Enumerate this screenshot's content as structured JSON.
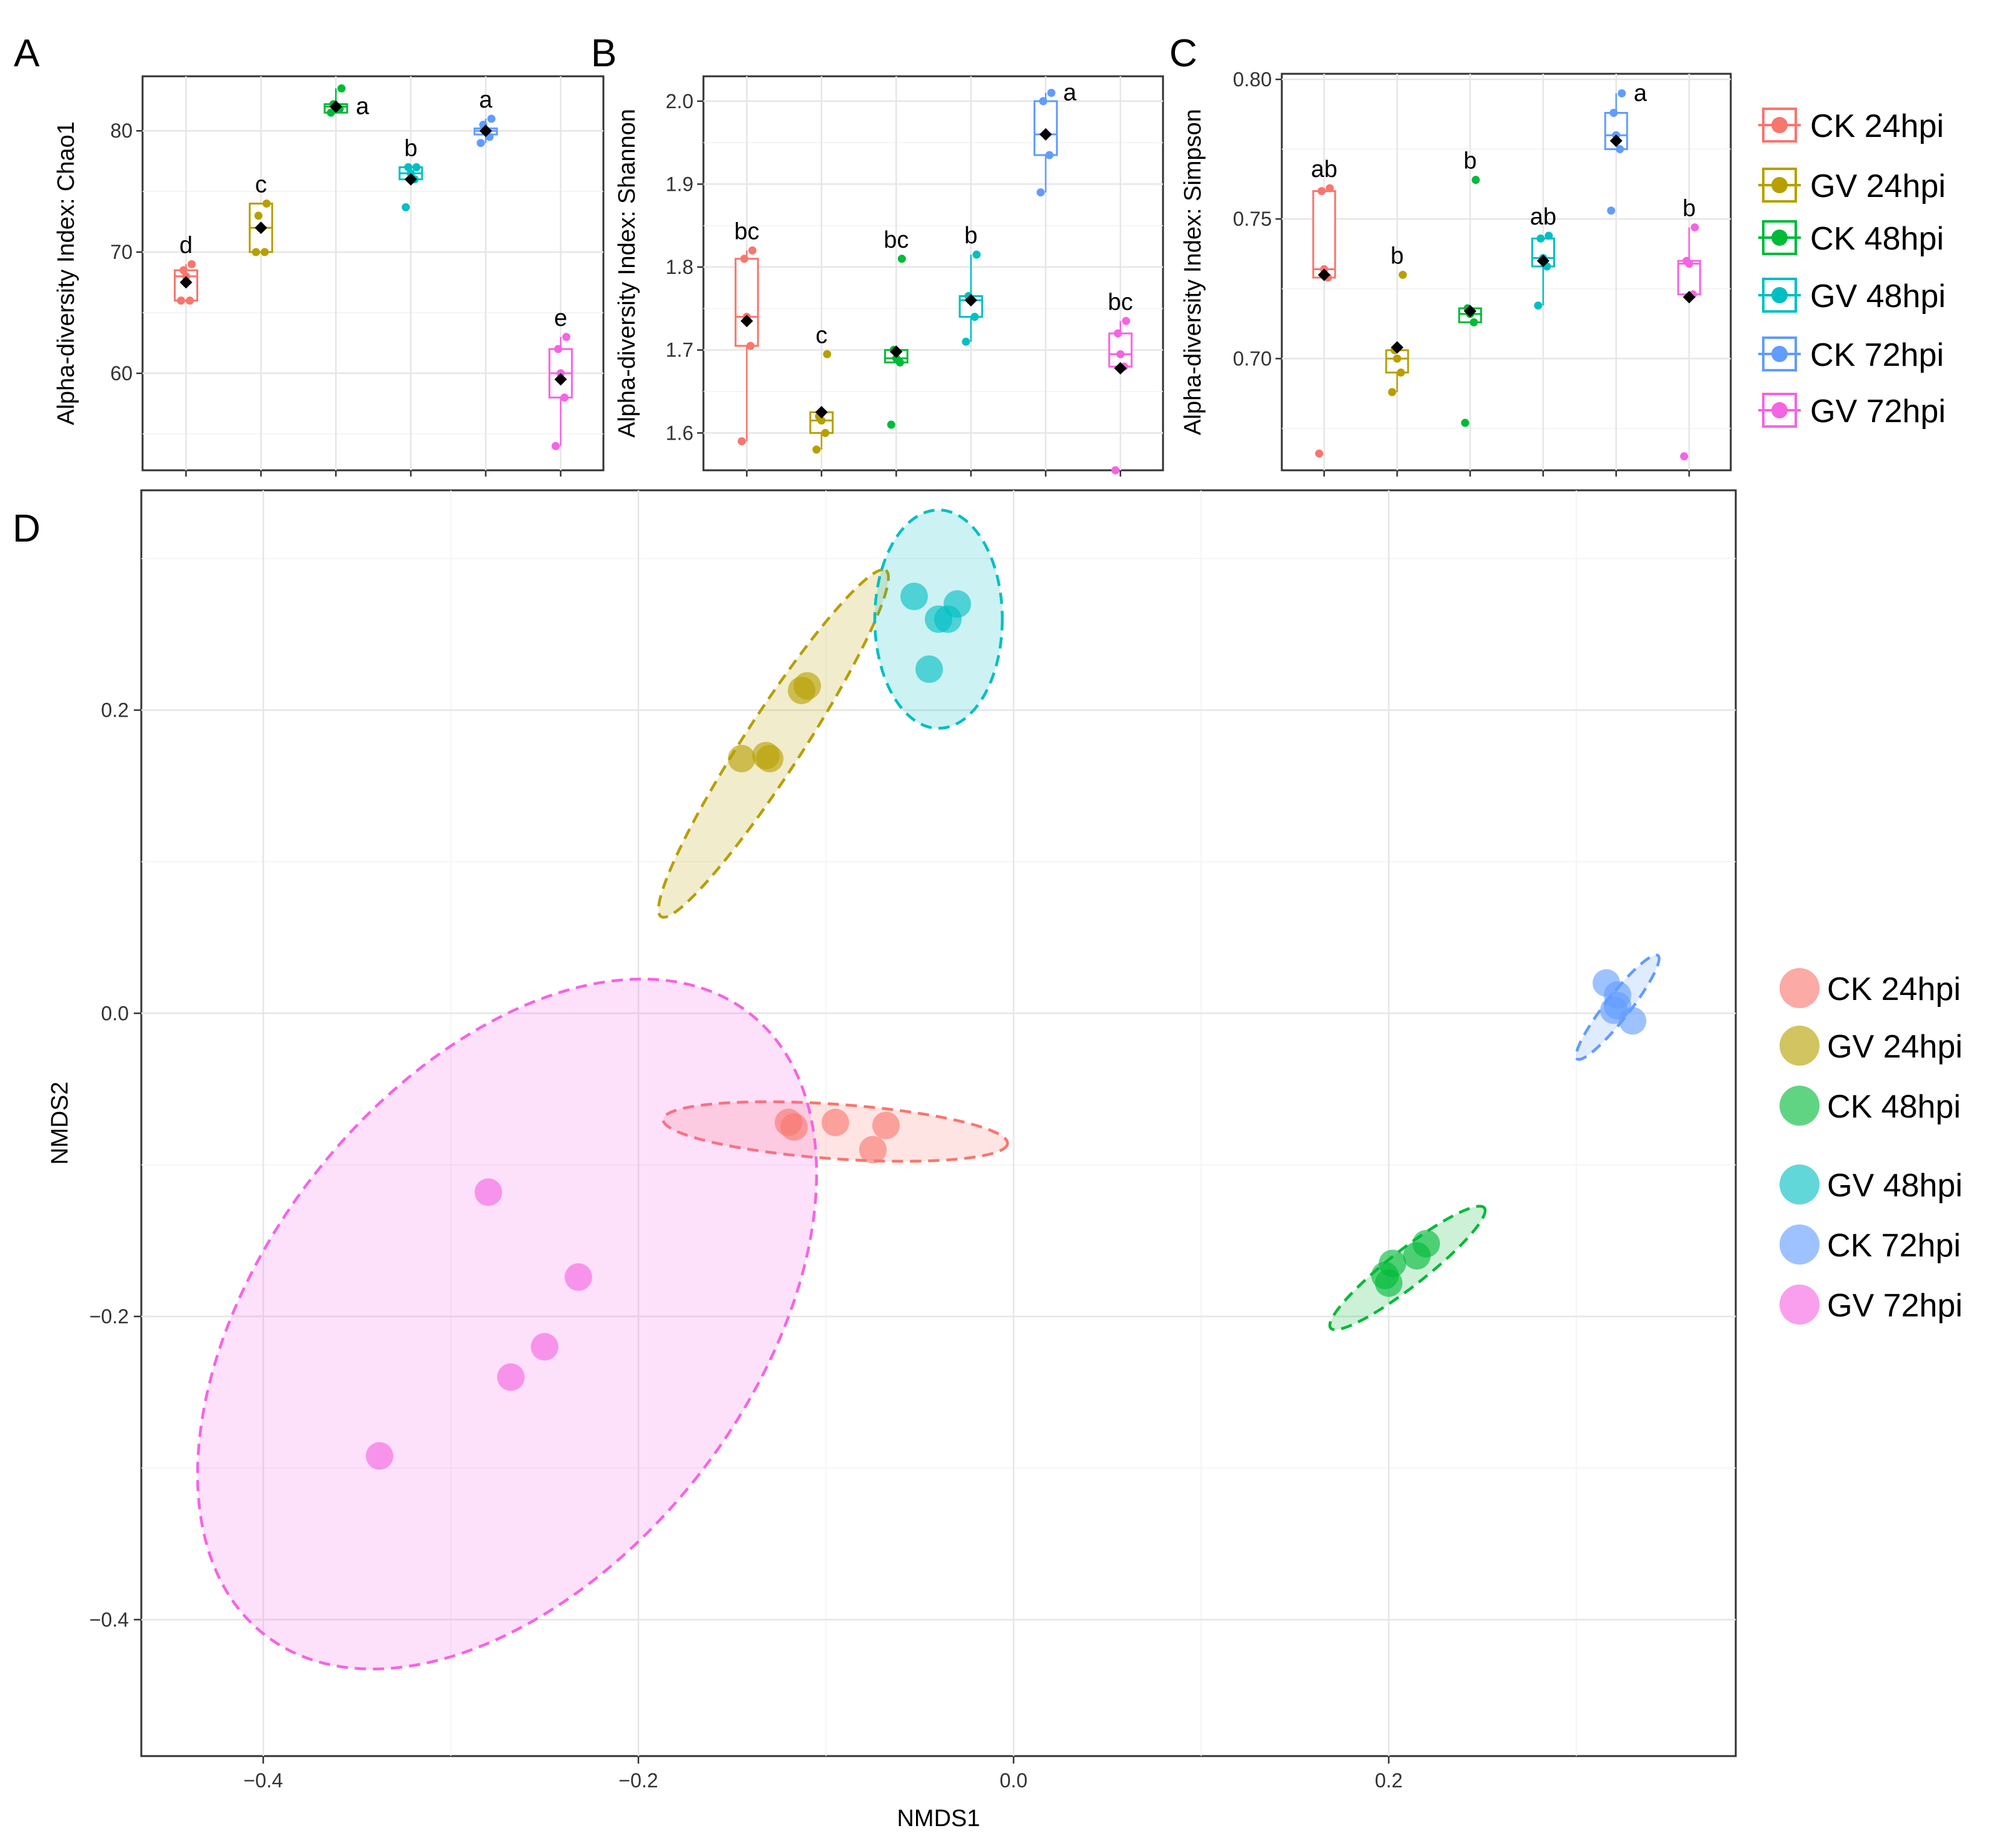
{
  "panels": {
    "a": "A",
    "b": "B",
    "c": "C",
    "d": "D"
  },
  "chart_data": [
    {
      "type": "box",
      "panel": "A",
      "ylabel": "Alpha-diversity Index: Chao1",
      "xlabel": "",
      "ylim": [
        52,
        84.5
      ],
      "yticks": [
        60,
        70,
        80
      ],
      "groups": [
        {
          "name": "CK 24hpi",
          "color": "#F8766D",
          "q1": 66,
          "median": 68,
          "q3": 68.5,
          "whisker_low": 66,
          "whisker_high": 69,
          "mean": 67.5,
          "points": [
            66,
            66,
            68,
            68.5,
            69
          ],
          "letter": "d"
        },
        {
          "name": "GV 24hpi",
          "color": "#B79F00",
          "q1": 70,
          "median": 72,
          "q3": 74,
          "whisker_low": 70,
          "whisker_high": 74,
          "mean": 72,
          "points": [
            70,
            70,
            72,
            73,
            74
          ],
          "letter": "c"
        },
        {
          "name": "CK 48hpi",
          "color": "#00BA38",
          "q1": 81.5,
          "median": 82,
          "q3": 82.2,
          "whisker_low": 81.5,
          "whisker_high": 83.5,
          "mean": 82,
          "points": [
            81.5,
            81.8,
            82,
            82.2,
            83.5
          ],
          "letter": "a"
        },
        {
          "name": "GV 48hpi",
          "color": "#00BFC4",
          "q1": 76,
          "median": 76.5,
          "q3": 77,
          "whisker_low": 76,
          "whisker_high": 77,
          "mean": 76,
          "points": [
            73.7,
            76,
            76.5,
            77,
            77
          ],
          "letter": "b"
        },
        {
          "name": "CK 72hpi",
          "color": "#619CFF",
          "q1": 79.7,
          "median": 80,
          "q3": 80.2,
          "whisker_low": 79,
          "whisker_high": 81,
          "mean": 80,
          "points": [
            79,
            79.5,
            80,
            80.5,
            81
          ],
          "letter": "a"
        },
        {
          "name": "GV 72hpi",
          "color": "#F564E3",
          "q1": 58,
          "median": 60,
          "q3": 62,
          "whisker_low": 54,
          "whisker_high": 63,
          "mean": 59.5,
          "points": [
            54,
            58,
            60,
            62,
            63
          ],
          "letter": "e"
        }
      ]
    },
    {
      "type": "box",
      "panel": "B",
      "ylabel": "Alpha-diversity Index: Shannon",
      "xlabel": "",
      "ylim": [
        1.555,
        2.03
      ],
      "yticks": [
        1.6,
        1.7,
        1.8,
        1.9,
        2.0
      ],
      "ytick_labels": [
        "1.6",
        "1.7",
        "1.8",
        "1.9",
        "2.0"
      ],
      "groups": [
        {
          "name": "CK 24hpi",
          "color": "#F8766D",
          "q1": 1.705,
          "median": 1.74,
          "q3": 1.81,
          "whisker_low": 1.59,
          "whisker_high": 1.82,
          "mean": 1.735,
          "points": [
            1.59,
            1.705,
            1.74,
            1.81,
            1.82
          ],
          "letter": "bc"
        },
        {
          "name": "GV 24hpi",
          "color": "#B79F00",
          "q1": 1.6,
          "median": 1.615,
          "q3": 1.625,
          "whisker_low": 1.58,
          "whisker_high": 1.625,
          "mean": 1.625,
          "points": [
            1.58,
            1.6,
            1.615,
            1.62,
            1.695
          ],
          "letter": "c"
        },
        {
          "name": "CK 48hpi",
          "color": "#00BA38",
          "q1": 1.685,
          "median": 1.69,
          "q3": 1.7,
          "whisker_low": 1.685,
          "whisker_high": 1.7,
          "mean": 1.698,
          "points": [
            1.61,
            1.685,
            1.69,
            1.7,
            1.81
          ],
          "letter": "bc"
        },
        {
          "name": "GV 48hpi",
          "color": "#00BFC4",
          "q1": 1.74,
          "median": 1.76,
          "q3": 1.765,
          "whisker_low": 1.71,
          "whisker_high": 1.815,
          "mean": 1.76,
          "points": [
            1.71,
            1.74,
            1.76,
            1.765,
            1.815
          ],
          "letter": "b"
        },
        {
          "name": "CK 72hpi",
          "color": "#619CFF",
          "q1": 1.935,
          "median": 1.96,
          "q3": 2.0,
          "whisker_low": 1.89,
          "whisker_high": 2.01,
          "mean": 1.96,
          "points": [
            1.89,
            1.935,
            1.96,
            2.0,
            2.01
          ],
          "letter": "a"
        },
        {
          "name": "GV 72hpi",
          "color": "#F564E3",
          "q1": 1.68,
          "median": 1.695,
          "q3": 1.72,
          "whisker_low": 1.68,
          "whisker_high": 1.735,
          "mean": 1.678,
          "points": [
            1.555,
            1.68,
            1.695,
            1.72,
            1.735
          ],
          "letter": "bc"
        }
      ]
    },
    {
      "type": "box",
      "panel": "C",
      "ylabel": "Alpha-diversity Index: Simpson",
      "xlabel": "",
      "ylim": [
        0.66,
        0.802
      ],
      "yticks": [
        0.7,
        0.75,
        0.8
      ],
      "ytick_labels": [
        "0.70",
        "0.75",
        "0.80"
      ],
      "groups": [
        {
          "name": "CK 24hpi",
          "color": "#F8766D",
          "q1": 0.729,
          "median": 0.732,
          "q3": 0.76,
          "whisker_low": 0.729,
          "whisker_high": 0.761,
          "mean": 0.73,
          "points": [
            0.666,
            0.729,
            0.732,
            0.76,
            0.761
          ],
          "letter": "ab"
        },
        {
          "name": "GV 24hpi",
          "color": "#B79F00",
          "q1": 0.695,
          "median": 0.7,
          "q3": 0.703,
          "whisker_low": 0.688,
          "whisker_high": 0.703,
          "mean": 0.704,
          "points": [
            0.688,
            0.695,
            0.7,
            0.703,
            0.73
          ],
          "letter": "b"
        },
        {
          "name": "CK 48hpi",
          "color": "#00BA38",
          "q1": 0.713,
          "median": 0.716,
          "q3": 0.718,
          "whisker_low": 0.713,
          "whisker_high": 0.718,
          "mean": 0.717,
          "points": [
            0.677,
            0.713,
            0.716,
            0.718,
            0.764
          ],
          "letter": "b"
        },
        {
          "name": "GV 48hpi",
          "color": "#00BFC4",
          "q1": 0.733,
          "median": 0.736,
          "q3": 0.743,
          "whisker_low": 0.719,
          "whisker_high": 0.744,
          "mean": 0.735,
          "points": [
            0.719,
            0.733,
            0.736,
            0.743,
            0.744
          ],
          "letter": "ab"
        },
        {
          "name": "CK 72hpi",
          "color": "#619CFF",
          "q1": 0.775,
          "median": 0.78,
          "q3": 0.788,
          "whisker_low": 0.775,
          "whisker_high": 0.795,
          "mean": 0.778,
          "points": [
            0.753,
            0.775,
            0.78,
            0.788,
            0.795
          ],
          "letter": "a"
        },
        {
          "name": "GV 72hpi",
          "color": "#F564E3",
          "q1": 0.723,
          "median": 0.734,
          "q3": 0.735,
          "whisker_low": 0.723,
          "whisker_high": 0.747,
          "mean": 0.722,
          "points": [
            0.665,
            0.723,
            0.734,
            0.735,
            0.747
          ],
          "letter": "b"
        }
      ]
    },
    {
      "type": "scatter",
      "panel": "D",
      "xlabel": "NMDS1",
      "ylabel": "NMDS2",
      "xlim": [
        -0.465,
        0.385
      ],
      "ylim": [
        -0.49,
        0.345
      ],
      "xticks": [
        -0.4,
        -0.2,
        0.0,
        0.2
      ],
      "xtick_labels": [
        "−0.4",
        "−0.2",
        "0.0",
        "0.2"
      ],
      "yticks": [
        -0.4,
        -0.2,
        0.0,
        0.2
      ],
      "ytick_labels": [
        "−0.4",
        "−0.2",
        "0.0",
        "0.2"
      ],
      "series": [
        {
          "name": "CK 24hpi",
          "color": "#F8766D",
          "x": [
            -0.12,
            -0.117,
            -0.095,
            -0.068,
            -0.075
          ],
          "y": [
            -0.072,
            -0.075,
            -0.072,
            -0.074,
            -0.09
          ],
          "ellipse": {
            "cx": -0.095,
            "cy": -0.078,
            "rx": 0.092,
            "ry": 0.018,
            "angle": 4
          }
        },
        {
          "name": "GV 24hpi",
          "color": "#B79F00",
          "x": [
            -0.145,
            -0.132,
            -0.13,
            -0.11,
            -0.113
          ],
          "y": [
            0.168,
            0.17,
            0.168,
            0.216,
            0.213
          ],
          "ellipse": {
            "cx": -0.128,
            "cy": 0.178,
            "rx": 0.11,
            "ry": 0.019,
            "angle": -57
          }
        },
        {
          "name": "CK 48hpi",
          "color": "#00BA38",
          "x": [
            0.198,
            0.202,
            0.2,
            0.22,
            0.215
          ],
          "y": [
            -0.173,
            -0.165,
            -0.178,
            -0.152,
            -0.16
          ],
          "ellipse": {
            "cx": 0.21,
            "cy": -0.168,
            "rx": 0.052,
            "ry": 0.012,
            "angle": -38
          }
        },
        {
          "name": "GV 48hpi",
          "color": "#00BFC4",
          "x": [
            -0.053,
            -0.04,
            -0.03,
            -0.035,
            -0.045
          ],
          "y": [
            0.275,
            0.26,
            0.27,
            0.26,
            0.227
          ],
          "ellipse": {
            "cx": -0.04,
            "cy": 0.26,
            "rx": 0.034,
            "ry": 0.072,
            "angle": 0
          }
        },
        {
          "name": "CK 72hpi",
          "color": "#619CFF",
          "x": [
            0.316,
            0.322,
            0.32,
            0.33,
            0.322
          ],
          "y": [
            0.02,
            0.012,
            0.002,
            -0.005,
            0.005
          ],
          "ellipse": {
            "cx": 0.322,
            "cy": 0.004,
            "rx": 0.035,
            "ry": 0.008,
            "angle": -52
          }
        },
        {
          "name": "GV 72hpi",
          "color": "#F564E3",
          "x": [
            -0.28,
            -0.232,
            -0.25,
            -0.268,
            -0.338
          ],
          "y": [
            -0.118,
            -0.174,
            -0.22,
            -0.24,
            -0.292
          ],
          "ellipse": {
            "cx": -0.27,
            "cy": -0.205,
            "rx": 0.13,
            "ry": 0.26,
            "angle": 38
          }
        }
      ]
    }
  ],
  "box_legend": [
    "CK 24hpi",
    "GV 24hpi",
    "CK 48hpi",
    "GV 48hpi",
    "CK 72hpi",
    "GV 72hpi"
  ],
  "scatter_legend": [
    "CK 24hpi",
    "GV 24hpi",
    "CK 48hpi",
    "GV 48hpi",
    "CK 72hpi",
    "GV 72hpi"
  ]
}
